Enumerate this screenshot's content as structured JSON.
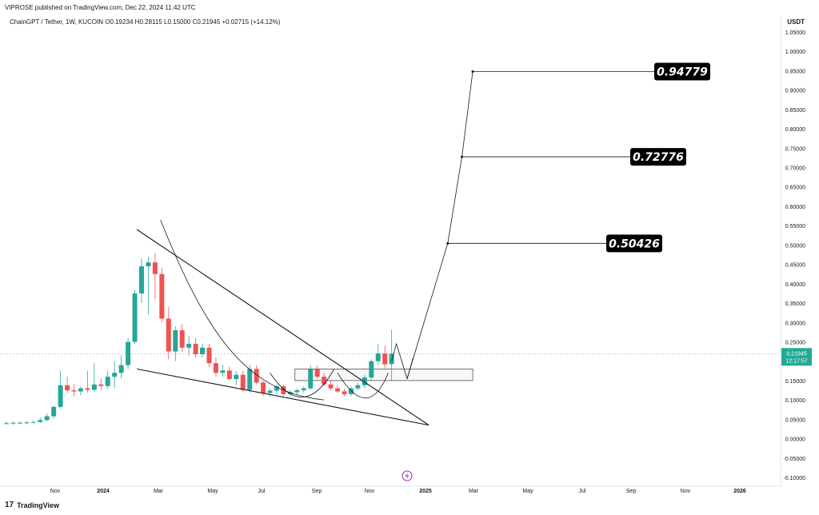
{
  "header": {
    "published": "VIPROSE published on TradingView.com, Dec 22, 2024 11:42 UTC",
    "symbol_line": "ChainGPT / Tether, 1W, KUCOIN  O0.19234  H0.28115  L0.15000  C0.21945  +0.02715 (+14.12%)",
    "currency": "USDT"
  },
  "footer": {
    "logo_text": "TradingView",
    "logo_mark": "17"
  },
  "colors": {
    "up": "#26a69a",
    "down": "#ef5350",
    "line": "#131722",
    "grid": "#e0e3eb",
    "price_tag": "#22ab94",
    "icon": "#9c27b0"
  },
  "chart_data": {
    "type": "candlestick",
    "title": "ChainGPT / Tether, 1W, KUCOIN",
    "ylim": [
      -0.1,
      1.05
    ],
    "y_ticks": [
      "1.05000",
      "1.00000",
      "0.95000",
      "0.90000",
      "0.85000",
      "0.80000",
      "0.75000",
      "0.70000",
      "0.65000",
      "0.60000",
      "0.55000",
      "0.50000",
      "0.45000",
      "0.40000",
      "0.35000",
      "0.30000",
      "0.25000",
      "0.20000",
      "0.15000",
      "0.10000",
      "0.05000",
      "0.00000",
      "-0.05000",
      "-0.10000"
    ],
    "x_ticks": [
      "Nov",
      "2024",
      "Mar",
      "May",
      "Jul",
      "Sep",
      "Nov",
      "2025",
      "Mar",
      "May",
      "Jul",
      "Sep",
      "Nov",
      "2026"
    ],
    "last_price": "0.21945",
    "countdown": "12:17:57",
    "candles": [
      {
        "o": 0.04,
        "h": 0.045,
        "l": 0.036,
        "c": 0.04
      },
      {
        "o": 0.04,
        "h": 0.044,
        "l": 0.036,
        "c": 0.041
      },
      {
        "o": 0.041,
        "h": 0.045,
        "l": 0.038,
        "c": 0.041
      },
      {
        "o": 0.041,
        "h": 0.046,
        "l": 0.038,
        "c": 0.042
      },
      {
        "o": 0.042,
        "h": 0.047,
        "l": 0.039,
        "c": 0.043
      },
      {
        "o": 0.043,
        "h": 0.055,
        "l": 0.04,
        "c": 0.048
      },
      {
        "o": 0.048,
        "h": 0.065,
        "l": 0.045,
        "c": 0.058
      },
      {
        "o": 0.058,
        "h": 0.085,
        "l": 0.052,
        "c": 0.082
      },
      {
        "o": 0.082,
        "h": 0.175,
        "l": 0.078,
        "c": 0.138
      },
      {
        "o": 0.138,
        "h": 0.16,
        "l": 0.118,
        "c": 0.125
      },
      {
        "o": 0.125,
        "h": 0.14,
        "l": 0.11,
        "c": 0.122
      },
      {
        "o": 0.122,
        "h": 0.135,
        "l": 0.112,
        "c": 0.13
      },
      {
        "o": 0.13,
        "h": 0.175,
        "l": 0.118,
        "c": 0.126
      },
      {
        "o": 0.126,
        "h": 0.195,
        "l": 0.12,
        "c": 0.14
      },
      {
        "o": 0.14,
        "h": 0.155,
        "l": 0.125,
        "c": 0.136
      },
      {
        "o": 0.136,
        "h": 0.175,
        "l": 0.128,
        "c": 0.16
      },
      {
        "o": 0.16,
        "h": 0.2,
        "l": 0.13,
        "c": 0.17
      },
      {
        "o": 0.17,
        "h": 0.215,
        "l": 0.155,
        "c": 0.19
      },
      {
        "o": 0.19,
        "h": 0.26,
        "l": 0.18,
        "c": 0.25
      },
      {
        "o": 0.25,
        "h": 0.385,
        "l": 0.245,
        "c": 0.375
      },
      {
        "o": 0.375,
        "h": 0.465,
        "l": 0.35,
        "c": 0.445
      },
      {
        "o": 0.445,
        "h": 0.47,
        "l": 0.32,
        "c": 0.455
      },
      {
        "o": 0.455,
        "h": 0.48,
        "l": 0.36,
        "c": 0.425
      },
      {
        "o": 0.425,
        "h": 0.44,
        "l": 0.3,
        "c": 0.31
      },
      {
        "o": 0.31,
        "h": 0.34,
        "l": 0.205,
        "c": 0.225
      },
      {
        "o": 0.225,
        "h": 0.29,
        "l": 0.2,
        "c": 0.28
      },
      {
        "o": 0.28,
        "h": 0.295,
        "l": 0.225,
        "c": 0.235
      },
      {
        "o": 0.235,
        "h": 0.265,
        "l": 0.215,
        "c": 0.245
      },
      {
        "o": 0.245,
        "h": 0.26,
        "l": 0.21,
        "c": 0.218
      },
      {
        "o": 0.218,
        "h": 0.245,
        "l": 0.21,
        "c": 0.235
      },
      {
        "o": 0.235,
        "h": 0.245,
        "l": 0.185,
        "c": 0.195
      },
      {
        "o": 0.195,
        "h": 0.21,
        "l": 0.16,
        "c": 0.17
      },
      {
        "o": 0.17,
        "h": 0.19,
        "l": 0.16,
        "c": 0.176
      },
      {
        "o": 0.176,
        "h": 0.185,
        "l": 0.15,
        "c": 0.154
      },
      {
        "o": 0.154,
        "h": 0.175,
        "l": 0.138,
        "c": 0.165
      },
      {
        "o": 0.165,
        "h": 0.175,
        "l": 0.12,
        "c": 0.126
      },
      {
        "o": 0.126,
        "h": 0.19,
        "l": 0.12,
        "c": 0.18
      },
      {
        "o": 0.18,
        "h": 0.19,
        "l": 0.14,
        "c": 0.145
      },
      {
        "o": 0.145,
        "h": 0.15,
        "l": 0.11,
        "c": 0.118
      },
      {
        "o": 0.118,
        "h": 0.13,
        "l": 0.108,
        "c": 0.124
      },
      {
        "o": 0.124,
        "h": 0.14,
        "l": 0.115,
        "c": 0.135
      },
      {
        "o": 0.135,
        "h": 0.14,
        "l": 0.11,
        "c": 0.115
      },
      {
        "o": 0.115,
        "h": 0.125,
        "l": 0.108,
        "c": 0.12
      },
      {
        "o": 0.12,
        "h": 0.13,
        "l": 0.113,
        "c": 0.125
      },
      {
        "o": 0.125,
        "h": 0.135,
        "l": 0.118,
        "c": 0.13
      },
      {
        "o": 0.13,
        "h": 0.19,
        "l": 0.125,
        "c": 0.18
      },
      {
        "o": 0.18,
        "h": 0.19,
        "l": 0.155,
        "c": 0.16
      },
      {
        "o": 0.16,
        "h": 0.17,
        "l": 0.135,
        "c": 0.14
      },
      {
        "o": 0.14,
        "h": 0.15,
        "l": 0.125,
        "c": 0.13
      },
      {
        "o": 0.13,
        "h": 0.138,
        "l": 0.118,
        "c": 0.122
      },
      {
        "o": 0.122,
        "h": 0.13,
        "l": 0.11,
        "c": 0.115
      },
      {
        "o": 0.115,
        "h": 0.135,
        "l": 0.11,
        "c": 0.13
      },
      {
        "o": 0.13,
        "h": 0.145,
        "l": 0.125,
        "c": 0.138
      },
      {
        "o": 0.138,
        "h": 0.165,
        "l": 0.13,
        "c": 0.158
      },
      {
        "o": 0.158,
        "h": 0.205,
        "l": 0.15,
        "c": 0.2
      },
      {
        "o": 0.2,
        "h": 0.245,
        "l": 0.19,
        "c": 0.22
      },
      {
        "o": 0.22,
        "h": 0.24,
        "l": 0.18,
        "c": 0.192
      },
      {
        "o": 0.19234,
        "h": 0.28115,
        "l": 0.15,
        "c": 0.21945
      }
    ],
    "projection_points": [
      {
        "t": 61.0,
        "v": 0.15
      },
      {
        "t": 65.3,
        "v": 0.50426
      },
      {
        "t": 67.4,
        "v": 0.72776
      },
      {
        "t": 69.0,
        "v": 0.94779
      }
    ],
    "targets": [
      {
        "value": 0.94779,
        "label": "0.94779"
      },
      {
        "value": 0.72776,
        "label": "0.72776"
      },
      {
        "value": 0.50426,
        "label": "0.50426"
      }
    ],
    "trendlines": [
      {
        "t1": 19.3,
        "v1": 0.54,
        "t2": 62.5,
        "v2": 0.035
      },
      {
        "t1": 19.3,
        "v1": 0.18,
        "t2": 62.5,
        "v2": 0.035
      }
    ],
    "zone": {
      "t1": 42.7,
      "t2": 69.0,
      "v1": 0.15,
      "v2": 0.18
    }
  }
}
